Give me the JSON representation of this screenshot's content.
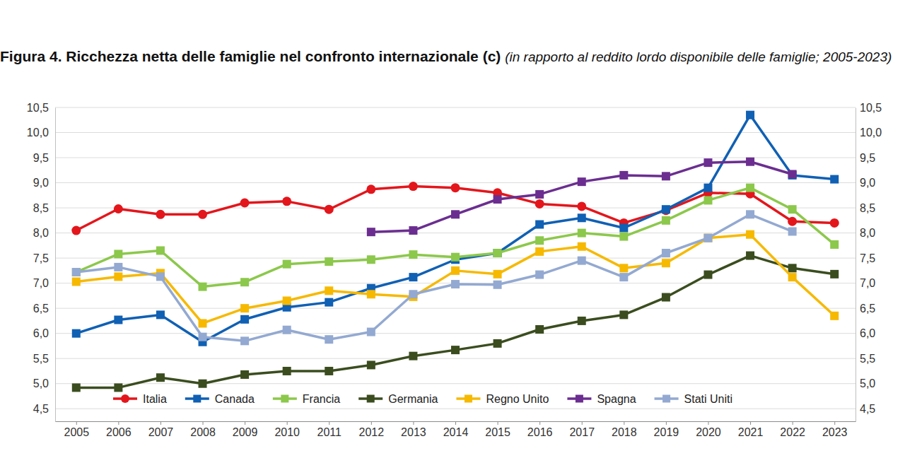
{
  "chart_data": {
    "type": "line",
    "title": "Figura 4. Ricchezza netta delle famiglie nel confronto internazionale (c)",
    "subtitle": "(in rapporto al reddito lordo disponibile delle famiglie; 2005-2023)",
    "categories": [
      "2005",
      "2006",
      "2007",
      "2008",
      "2009",
      "2010",
      "2011",
      "2012",
      "2013",
      "2014",
      "2015",
      "2016",
      "2017",
      "2018",
      "2019",
      "2020",
      "2021",
      "2022",
      "2023"
    ],
    "series": [
      {
        "name": "Italia",
        "color": "#e3161c",
        "marker": "circle",
        "values": [
          8.05,
          8.48,
          8.37,
          8.37,
          8.6,
          8.63,
          8.47,
          8.87,
          8.93,
          8.9,
          8.8,
          8.58,
          8.53,
          8.2,
          8.45,
          8.8,
          8.78,
          8.23,
          8.2
        ]
      },
      {
        "name": "Canada",
        "color": "#1060b4",
        "marker": "square",
        "values": [
          6.0,
          6.27,
          6.37,
          5.83,
          6.28,
          6.52,
          6.62,
          6.9,
          7.12,
          7.47,
          7.6,
          8.17,
          8.3,
          8.1,
          8.47,
          8.9,
          10.35,
          9.15,
          9.07
        ]
      },
      {
        "name": "Francia",
        "color": "#8cc84b",
        "marker": "square",
        "values": [
          7.22,
          7.58,
          7.65,
          6.93,
          7.02,
          7.38,
          7.43,
          7.47,
          7.57,
          7.52,
          7.6,
          7.85,
          8.0,
          7.93,
          8.25,
          8.65,
          8.9,
          8.47,
          7.77
        ]
      },
      {
        "name": "Germania",
        "color": "#3b4d1f",
        "marker": "square",
        "values": [
          4.92,
          4.92,
          5.12,
          5.0,
          5.18,
          5.25,
          5.25,
          5.37,
          5.55,
          5.67,
          5.8,
          6.08,
          6.25,
          6.37,
          6.72,
          7.17,
          7.55,
          7.3,
          7.18
        ]
      },
      {
        "name": "Regno Unito",
        "color": "#f6b900",
        "marker": "square",
        "values": [
          7.03,
          7.13,
          7.2,
          6.2,
          6.5,
          6.65,
          6.85,
          6.78,
          6.73,
          7.25,
          7.18,
          7.63,
          7.73,
          7.3,
          7.4,
          7.9,
          7.97,
          7.12,
          6.35
        ]
      },
      {
        "name": "Spagna",
        "color": "#6b2e90",
        "marker": "square",
        "values": [
          null,
          null,
          null,
          null,
          null,
          null,
          null,
          8.02,
          8.05,
          8.37,
          8.67,
          8.77,
          9.02,
          9.15,
          9.13,
          9.4,
          9.42,
          9.17,
          null
        ]
      },
      {
        "name": "Stati Uniti",
        "color": "#93a9d1",
        "marker": "square",
        "values": [
          7.22,
          7.32,
          7.13,
          5.93,
          5.85,
          6.07,
          5.88,
          6.03,
          6.78,
          6.98,
          6.97,
          7.17,
          7.45,
          7.12,
          7.6,
          7.9,
          8.37,
          8.03,
          null
        ]
      }
    ],
    "ylim": [
      4.25,
      10.5
    ],
    "yticks": [
      {
        "value": 4.5,
        "label": "4,5"
      },
      {
        "value": 5.0,
        "label": "5,0"
      },
      {
        "value": 5.5,
        "label": "5,5"
      },
      {
        "value": 6.0,
        "label": "6,0"
      },
      {
        "value": 6.5,
        "label": "6,5"
      },
      {
        "value": 7.0,
        "label": "7,0"
      },
      {
        "value": 7.5,
        "label": "7,5"
      },
      {
        "value": 8.0,
        "label": "8,0"
      },
      {
        "value": 8.5,
        "label": "8,5"
      },
      {
        "value": 9.0,
        "label": "9,0"
      },
      {
        "value": 9.5,
        "label": "9,5"
      },
      {
        "value": 10.0,
        "label": "10,0"
      },
      {
        "value": 10.5,
        "label": "10,5"
      }
    ],
    "y2lim": [
      4.25,
      10.5
    ],
    "y2ticks": [
      {
        "value": 4.5,
        "label": "4,5"
      },
      {
        "value": 5.0,
        "label": "5,0"
      },
      {
        "value": 5.5,
        "label": "5,5"
      },
      {
        "value": 6.0,
        "label": "6,0"
      },
      {
        "value": 6.5,
        "label": "6,5"
      },
      {
        "value": 7.0,
        "label": "7,0"
      },
      {
        "value": 7.5,
        "label": "7,5"
      },
      {
        "value": 8.0,
        "label": "8,0"
      },
      {
        "value": 8.5,
        "label": "8,5"
      },
      {
        "value": 9.0,
        "label": "9,0"
      },
      {
        "value": 9.5,
        "label": "9,5"
      },
      {
        "value": 10.0,
        "label": "10,0"
      },
      {
        "value": 10.5,
        "label": "10,5"
      }
    ],
    "grid": true,
    "legend": "bottom"
  }
}
